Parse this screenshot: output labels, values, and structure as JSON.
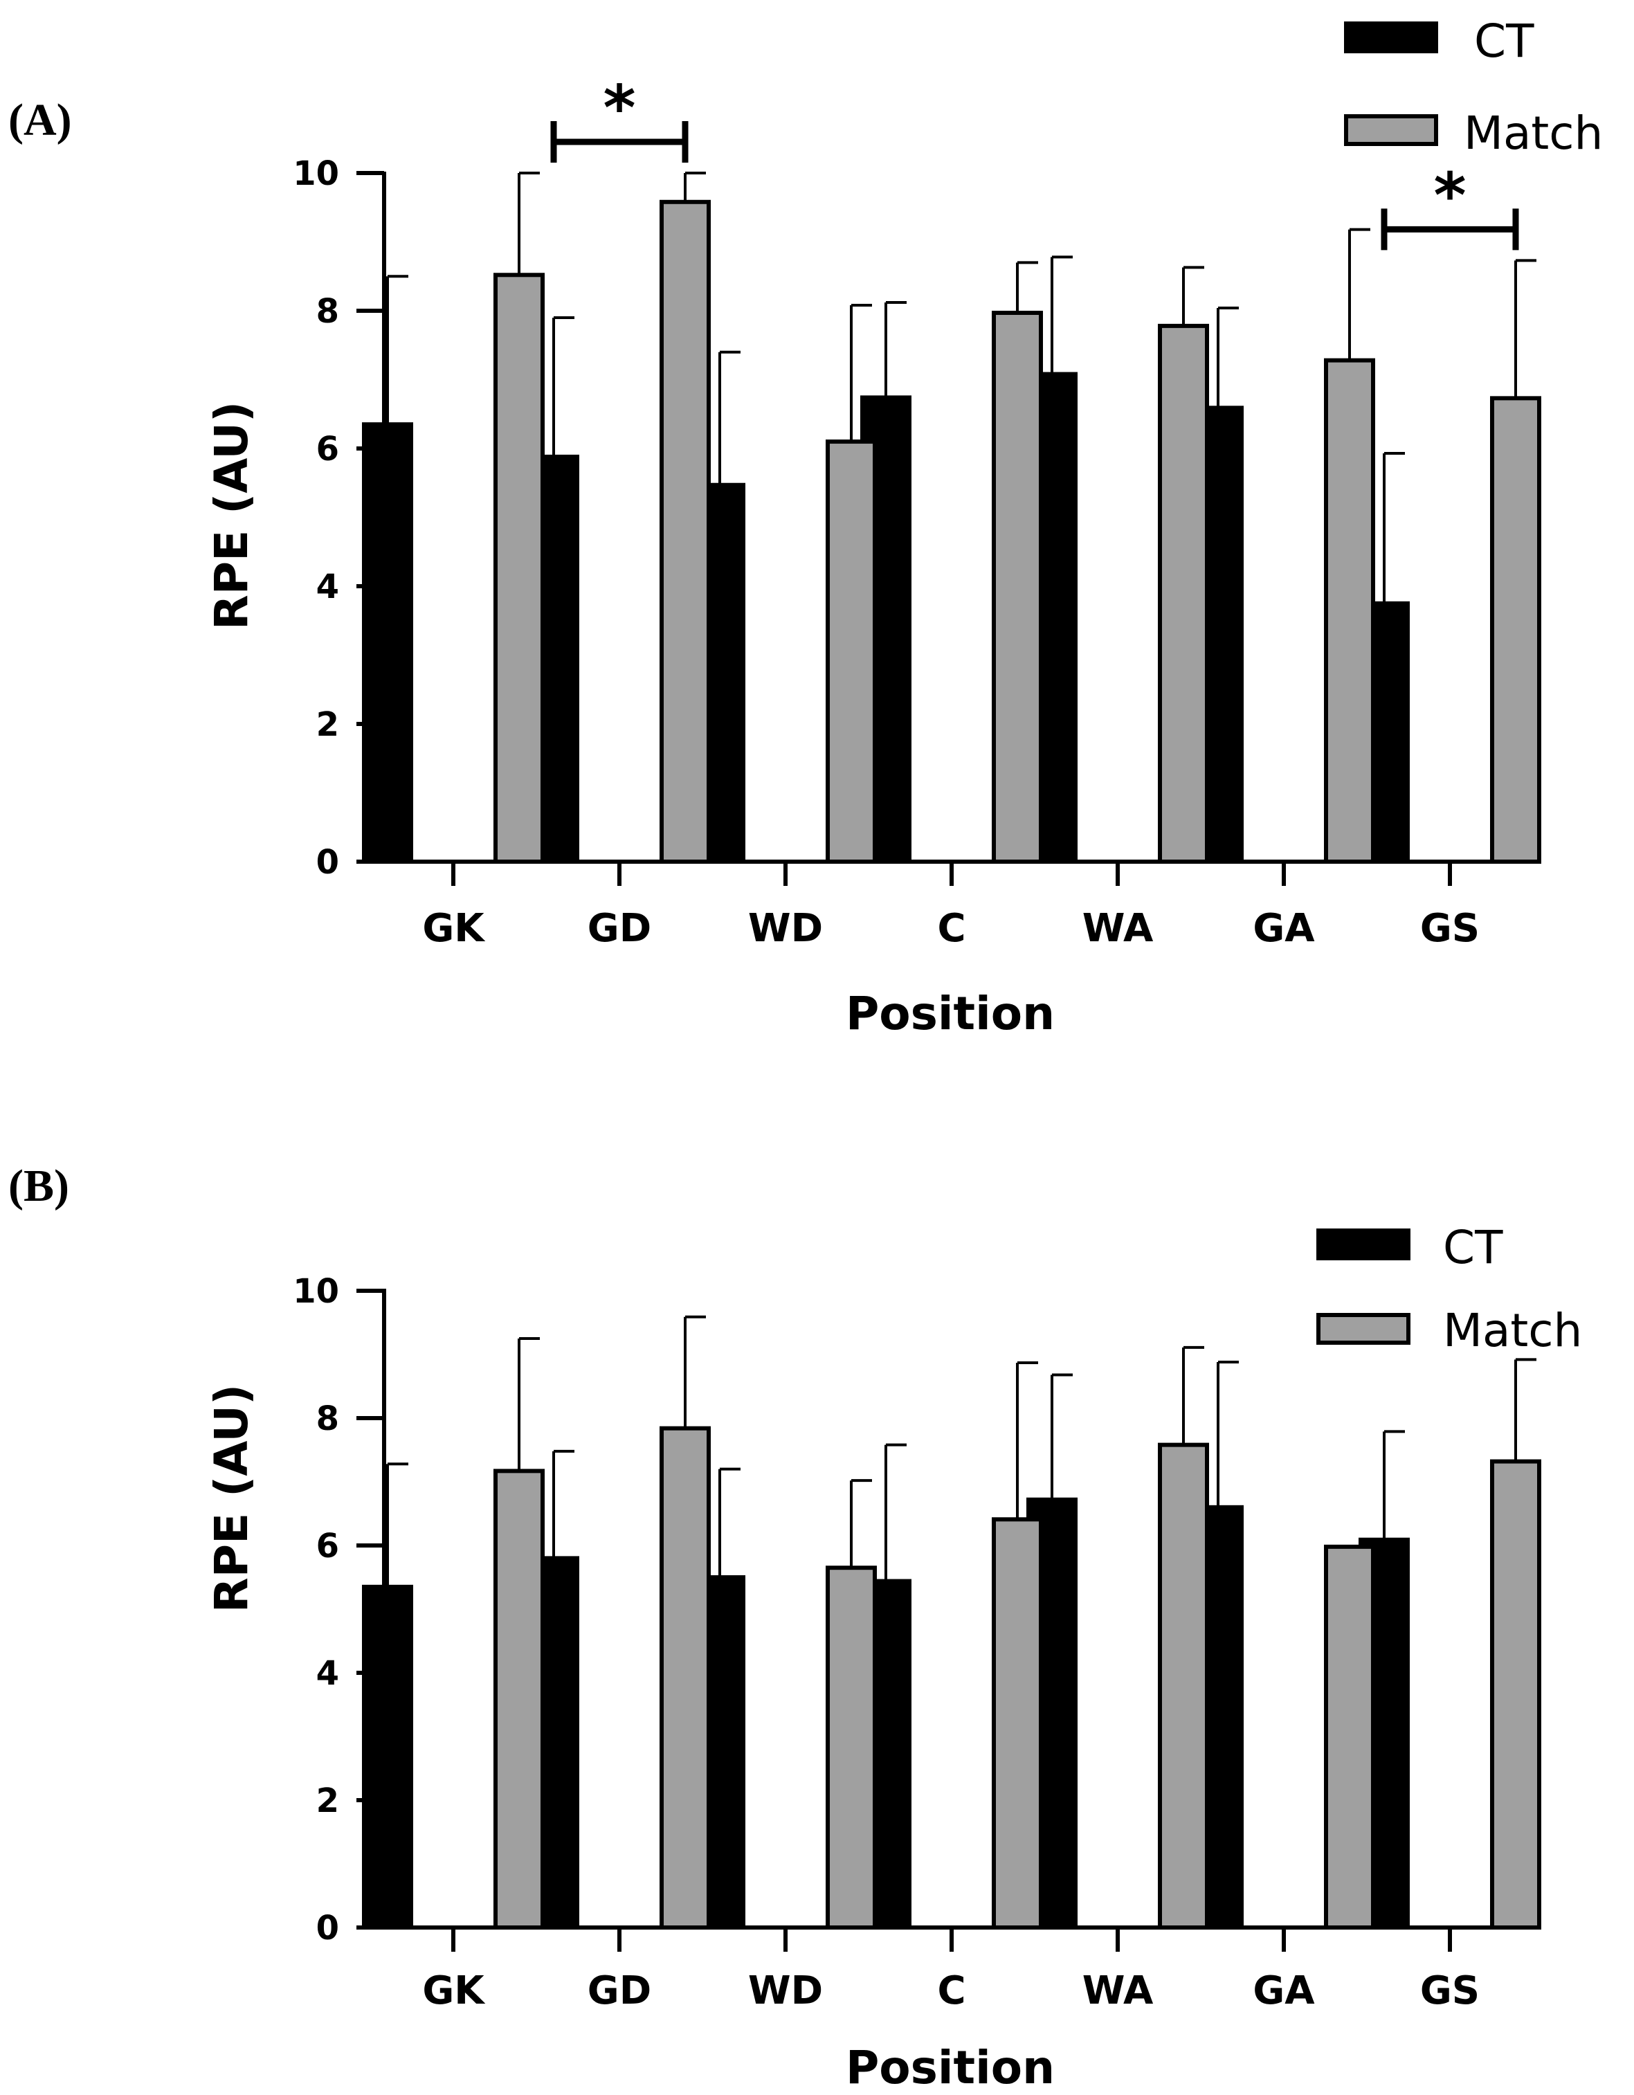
{
  "chart_data": [
    {
      "type": "bar",
      "panel": "(A)",
      "categories": [
        "GK",
        "GD",
        "WD",
        "C",
        "WA",
        "GA",
        "GS"
      ],
      "series": [
        {
          "name": "CT",
          "color": "#000000",
          "values": [
            6.35,
            5.88,
            5.47,
            6.74,
            7.08,
            6.59,
            3.75
          ],
          "err": [
            2.15,
            2.02,
            1.93,
            1.38,
            1.7,
            1.45,
            2.18
          ]
        },
        {
          "name": "Match",
          "color": "#a0a0a0",
          "values": [
            8.52,
            9.58,
            6.1,
            7.97,
            7.78,
            7.28,
            6.73
          ],
          "err": [
            1.48,
            0.42,
            1.98,
            0.73,
            0.85,
            1.9,
            2.0
          ]
        }
      ],
      "significance": [
        {
          "category": "GD",
          "label": "*"
        },
        {
          "category": "GS",
          "label": "*"
        }
      ],
      "xlabel": "Position",
      "ylabel": "RPE (AU)",
      "ylim": [
        0,
        10
      ],
      "yticks": [
        "0",
        "2",
        "4",
        "6",
        "8",
        "10"
      ],
      "legend_position": "top-right"
    },
    {
      "type": "bar",
      "panel": "(B)",
      "categories": [
        "GK",
        "GD",
        "WD",
        "C",
        "WA",
        "GA",
        "GS"
      ],
      "series": [
        {
          "name": "CT",
          "color": "#000000",
          "values": [
            5.35,
            5.8,
            5.5,
            5.44,
            6.72,
            6.6,
            6.09
          ],
          "err": [
            1.93,
            1.68,
            1.7,
            2.14,
            1.96,
            2.28,
            1.7
          ]
        },
        {
          "name": "Match",
          "color": "#a0a0a0",
          "values": [
            7.17,
            7.84,
            5.65,
            6.41,
            7.58,
            5.98,
            7.32
          ],
          "err": [
            2.08,
            1.75,
            1.37,
            2.46,
            1.53,
            0,
            1.6
          ]
        }
      ],
      "significance": [],
      "xlabel": "Position",
      "ylabel": "RPE (AU)",
      "ylim": [
        0,
        10
      ],
      "yticks": [
        "0",
        "2",
        "4",
        "6",
        "8",
        "10"
      ],
      "legend_position": "top-right"
    }
  ]
}
